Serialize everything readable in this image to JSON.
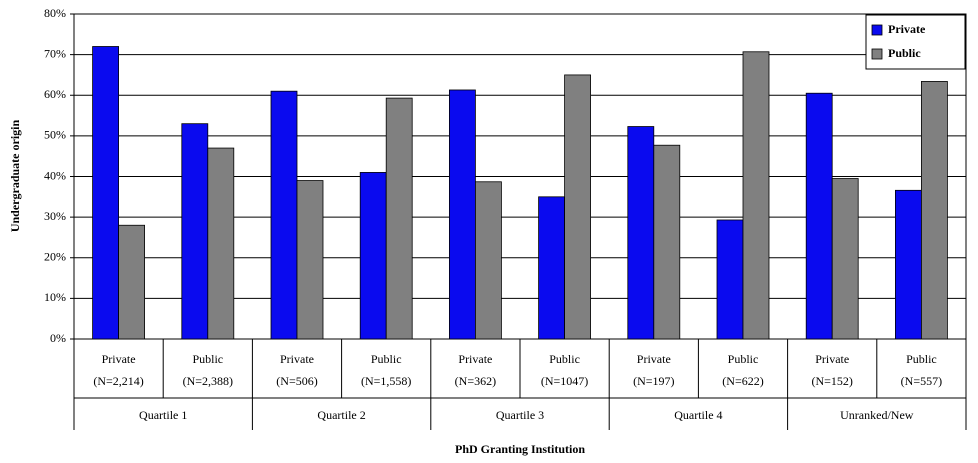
{
  "chart_data": {
    "type": "bar",
    "y_label": "Undergraduate origin",
    "x_label": "PhD Granting Institution",
    "categories": [
      "Private",
      "Public",
      "Private",
      "Public",
      "Private",
      "Public",
      "Private",
      "Public",
      "Private",
      "Public"
    ],
    "category_counts": [
      "(N=2,214)",
      "(N=2,388)",
      "(N=506)",
      "(N=1,558)",
      "(N=362)",
      "(N=1047)",
      "(N=197)",
      "(N=622)",
      "(N=152)",
      "(N=557)"
    ],
    "groups": [
      "Quartile 1",
      "Quartile 2",
      "Quartile 3",
      "Quartile 4",
      "Unranked/New"
    ],
    "series": [
      {
        "name": "Private",
        "color": "#0a0aef",
        "values": [
          72,
          53,
          61,
          41,
          61.3,
          35,
          52.3,
          29.3,
          60.5,
          36.6
        ]
      },
      {
        "name": "Public",
        "color": "#808080",
        "values": [
          28,
          47,
          39,
          59.3,
          38.7,
          65,
          47.7,
          70.7,
          39.5,
          63.4
        ]
      }
    ],
    "ylim": [
      0,
      80
    ],
    "yticks": [
      {
        "value": 0,
        "label": "0%"
      },
      {
        "value": 10,
        "label": "10%"
      },
      {
        "value": 20,
        "label": "20%"
      },
      {
        "value": 30,
        "label": "30%"
      },
      {
        "value": 40,
        "label": "40%"
      },
      {
        "value": 50,
        "label": "50%"
      },
      {
        "value": 60,
        "label": "60%"
      },
      {
        "value": 70,
        "label": "70%"
      },
      {
        "value": 80,
        "label": "80%"
      }
    ],
    "grid": true,
    "legend": "top-right"
  }
}
